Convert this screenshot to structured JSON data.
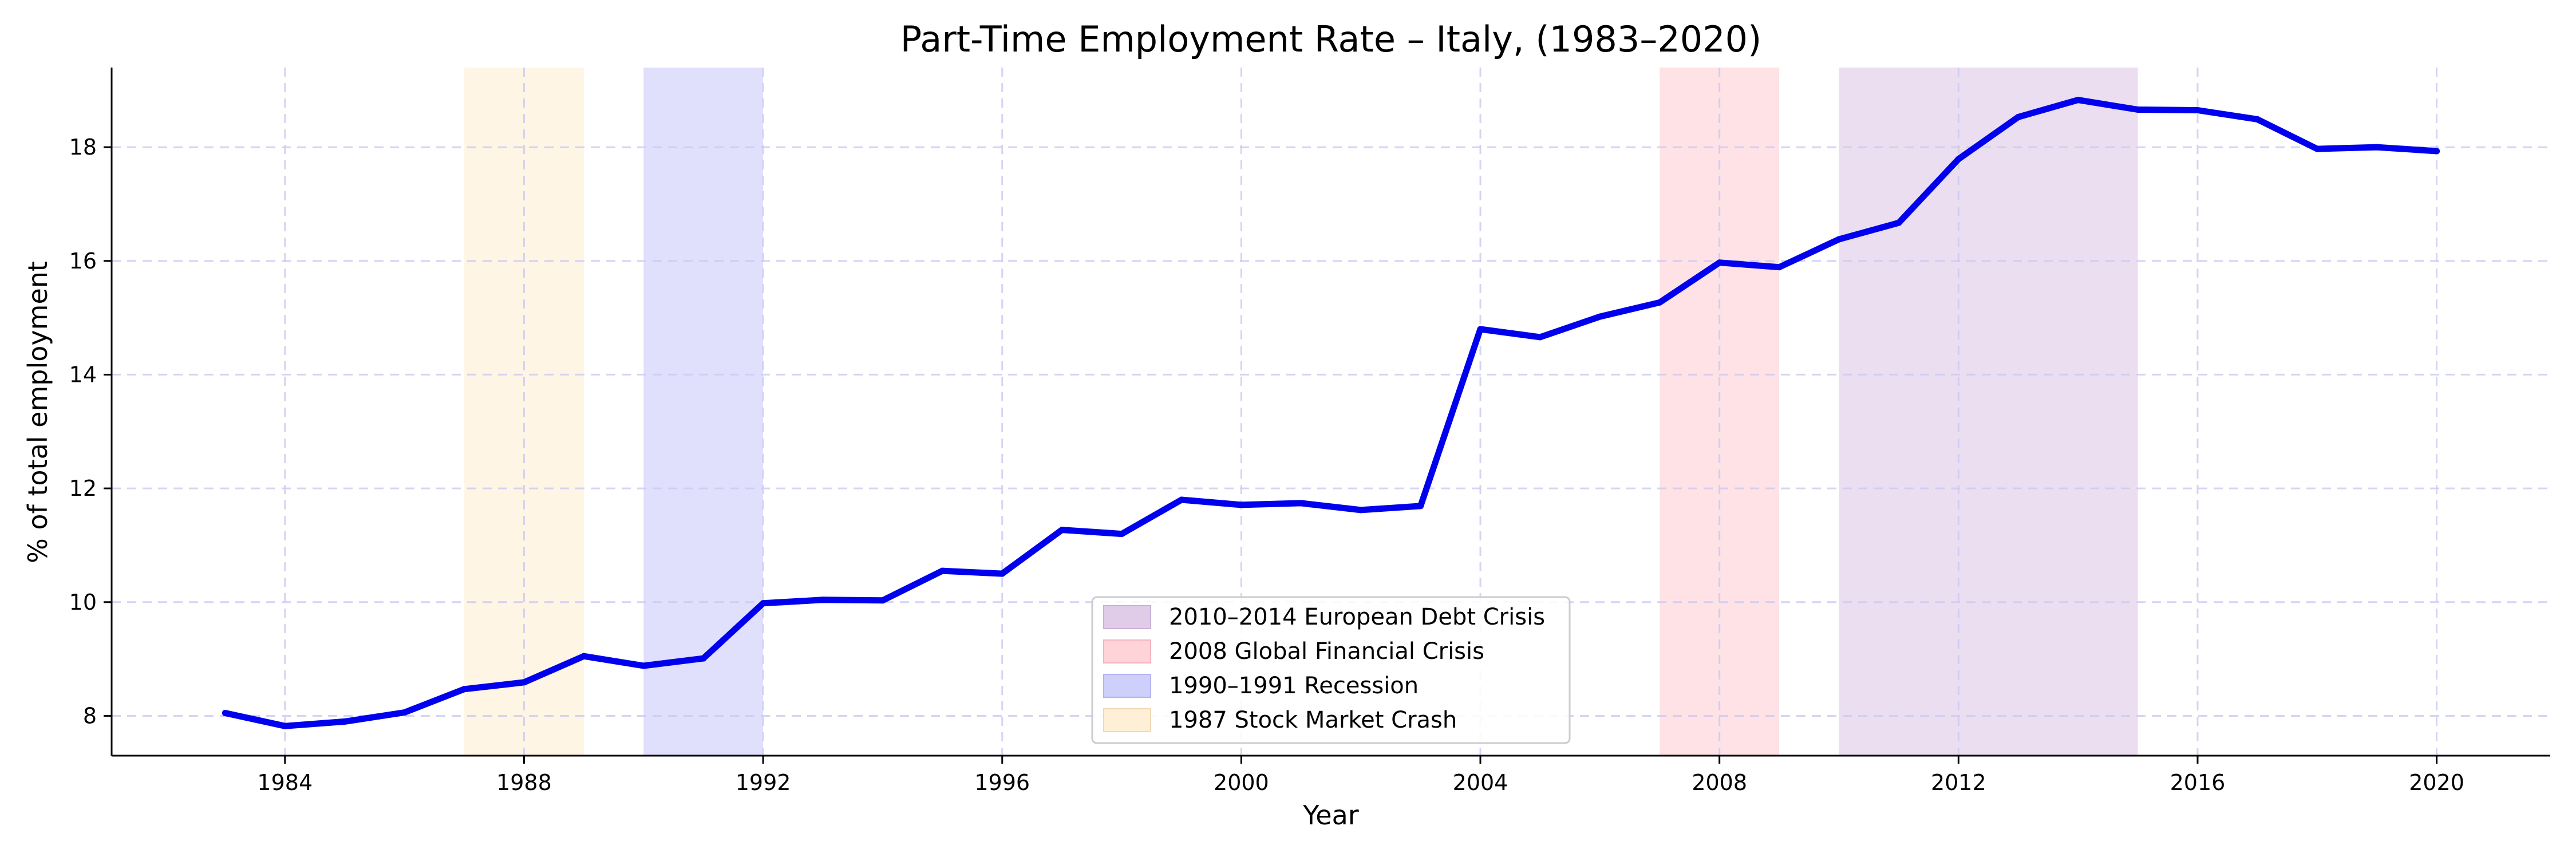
{
  "chart_data": {
    "type": "line",
    "title": "Part-Time Employment Rate – Italy, (1983–2020)",
    "xlabel": "Year",
    "ylabel": "% of total employment",
    "xlim": [
      1981.1,
      2021.9
    ],
    "ylim": [
      7.3,
      19.4
    ],
    "xticks": [
      1984,
      1988,
      1992,
      1996,
      2000,
      2004,
      2008,
      2012,
      2016,
      2020
    ],
    "yticks": [
      8,
      10,
      12,
      14,
      16,
      18
    ],
    "grid": true,
    "legend_position": "bottom-center",
    "series": [
      {
        "color": "#0000ee",
        "x": [
          1983,
          1984,
          1985,
          1986,
          1987,
          1988,
          1989,
          1990,
          1991,
          1992,
          1993,
          1994,
          1995,
          1996,
          1997,
          1998,
          1999,
          2000,
          2001,
          2002,
          2003,
          2004,
          2005,
          2006,
          2007,
          2008,
          2009,
          2010,
          2011,
          2012,
          2013,
          2014,
          2015,
          2016,
          2017,
          2018,
          2019,
          2020
        ],
        "values": [
          8.05,
          7.82,
          7.9,
          8.06,
          8.47,
          8.59,
          9.05,
          8.88,
          9.01,
          9.98,
          10.04,
          10.03,
          10.55,
          10.5,
          11.27,
          11.2,
          11.8,
          11.71,
          11.74,
          11.62,
          11.69,
          14.8,
          14.66,
          15.02,
          15.27,
          15.97,
          15.89,
          16.38,
          16.67,
          17.79,
          18.53,
          18.83,
          18.66,
          18.65,
          18.49,
          17.97,
          18.0,
          17.93
        ]
      }
    ],
    "shaded_periods": [
      {
        "label": "2010–2014 European Debt Crisis",
        "start": 2010,
        "end": 2015,
        "color": "#e0cce8"
      },
      {
        "label": "2008 Global Financial Crisis",
        "start": 2007,
        "end": 2009,
        "color": "#ffd3d8"
      },
      {
        "label": "1990–1991 Recession",
        "start": 1990,
        "end": 1992,
        "color": "#cfcffb"
      },
      {
        "label": "1987 Stock Market Crash",
        "start": 1987,
        "end": 1989,
        "color": "#feefd6"
      }
    ]
  }
}
